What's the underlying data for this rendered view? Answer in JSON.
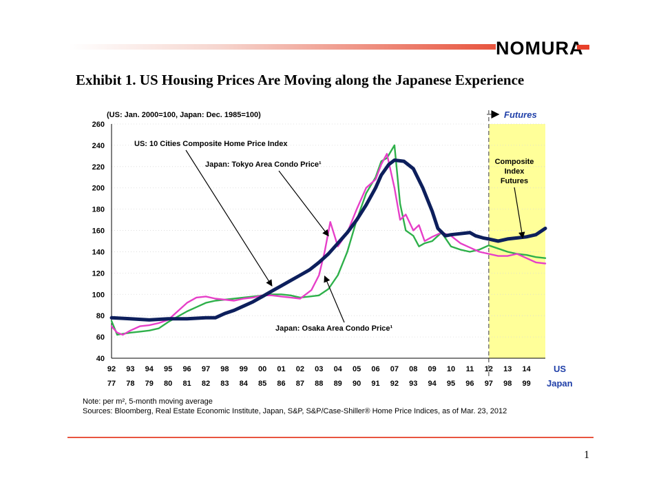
{
  "header": {
    "brand": "NOMURA",
    "title": "Exhibit 1.  US Housing Prices Are Moving along the Japanese Experience"
  },
  "footer": {
    "note": "Note: per m², 5-month moving average",
    "sources": "Sources: Bloomberg, Real Estate Economic Institute, Japan, S&P, S&P/Case-Shiller® Home Price Indices, as of Mar. 23, 2012",
    "page_number": "1"
  },
  "chart_data": {
    "type": "line",
    "title": "Exhibit 1.  US Housing Prices Are Moving along the Japanese Experience",
    "ylabel": "(US: Jan. 2000=100, Japan: Dec. 1985=100)",
    "ylim": [
      40,
      260
    ],
    "yticks": [
      40,
      60,
      80,
      100,
      120,
      140,
      160,
      180,
      200,
      220,
      240,
      260
    ],
    "xlim": [
      92,
      115
    ],
    "x_us_labels": [
      "92",
      "93",
      "94",
      "95",
      "96",
      "97",
      "98",
      "99",
      "00",
      "01",
      "02",
      "03",
      "04",
      "05",
      "06",
      "07",
      "08",
      "09",
      "10",
      "11",
      "12",
      "13",
      "14"
    ],
    "x_japan_labels": [
      "77",
      "78",
      "79",
      "80",
      "81",
      "82",
      "83",
      "84",
      "85",
      "86",
      "87",
      "88",
      "89",
      "90",
      "91",
      "92",
      "93",
      "94",
      "95",
      "96",
      "97",
      "98",
      "99"
    ],
    "x_axis_names": {
      "us": "US",
      "japan": "Japan"
    },
    "futures_start": 112,
    "futures_label": "Futures",
    "series": [
      {
        "name": "US: 10 Cities Composite Home Price Index",
        "color": "#0d1f5c",
        "x": [
          92,
          93,
          94,
          95,
          96,
          97,
          97.5,
          98,
          98.5,
          99,
          99.5,
          100,
          100.5,
          101,
          101.5,
          102,
          102.5,
          103,
          103.5,
          104,
          104.5,
          105,
          105.5,
          106,
          106.3,
          106.7,
          107,
          107.5,
          108,
          108.5,
          109,
          109.3,
          109.7,
          110,
          110.5,
          111,
          111.3,
          111.7,
          112,
          112.5,
          113,
          113.5,
          114,
          114.5,
          115
        ],
        "values": [
          78,
          77,
          76,
          77,
          77,
          78,
          78,
          82,
          85,
          89,
          93,
          98,
          103,
          108,
          113,
          118,
          123,
          130,
          138,
          148,
          158,
          170,
          184,
          200,
          212,
          222,
          226,
          225,
          218,
          200,
          178,
          162,
          155,
          156,
          157,
          158,
          155,
          153,
          152,
          150,
          152,
          153,
          154,
          156,
          162
        ]
      },
      {
        "name": "Japan: Tokyo Area Condo Price¹",
        "color": "#e63fc8",
        "x": [
          92,
          92.3,
          92.6,
          93,
          93.5,
          94,
          94.5,
          95,
          95.5,
          96,
          96.5,
          97,
          97.5,
          98,
          98.5,
          99,
          99.5,
          100,
          100.5,
          101,
          101.5,
          102,
          102.3,
          102.6,
          103,
          103.3,
          103.6,
          104,
          104.5,
          105,
          105.5,
          106,
          106.3,
          106.6,
          107,
          107.3,
          107.6,
          108,
          108.3,
          108.6,
          109,
          109.5,
          110,
          110.5,
          111,
          111.5,
          112,
          112.5,
          113,
          113.5,
          114,
          114.5,
          115
        ],
        "values": [
          70,
          64,
          62,
          66,
          70,
          71,
          73,
          76,
          84,
          92,
          97,
          98,
          96,
          95,
          94,
          96,
          97,
          99,
          99,
          98,
          97,
          96,
          100,
          104,
          118,
          140,
          168,
          145,
          158,
          180,
          200,
          208,
          222,
          232,
          200,
          170,
          175,
          160,
          165,
          150,
          154,
          158,
          155,
          148,
          144,
          140,
          138,
          136,
          136,
          138,
          134,
          130,
          129
        ]
      },
      {
        "name": "Japan: Osaka Area Condo Price¹",
        "color": "#2eb04a",
        "x": [
          92,
          92.3,
          92.6,
          93,
          93.5,
          94,
          94.5,
          95,
          95.5,
          96,
          96.5,
          97,
          97.5,
          98,
          98.5,
          99,
          99.5,
          100,
          100.5,
          101,
          101.5,
          102,
          102.5,
          103,
          103.5,
          104,
          104.5,
          105,
          105.5,
          106,
          106.3,
          106.6,
          107,
          107.3,
          107.6,
          108,
          108.3,
          108.6,
          109,
          109.5,
          110,
          110.5,
          111,
          111.5,
          112,
          112.5,
          113,
          113.5,
          114,
          114.5,
          115
        ],
        "values": [
          75,
          62,
          63,
          64,
          65,
          66,
          68,
          74,
          79,
          84,
          88,
          92,
          94,
          95,
          96,
          97,
          98,
          99,
          100,
          100,
          99,
          97,
          98,
          99,
          105,
          118,
          140,
          170,
          195,
          210,
          225,
          228,
          240,
          185,
          160,
          155,
          145,
          148,
          150,
          158,
          145,
          142,
          140,
          142,
          146,
          143,
          140,
          138,
          137,
          135,
          134
        ]
      }
    ],
    "annotations": [
      {
        "label": "US: 10 Cities Composite Home Price Index",
        "target_x": 100.5,
        "target_y": 108
      },
      {
        "label": "Japan: Tokyo Area Condo Price¹",
        "target_x": 103.5,
        "target_y": 155
      },
      {
        "label": "Japan: Osaka Area Condo Price¹",
        "target_x": 103.3,
        "target_y": 117
      },
      {
        "label": "Composite Index Futures",
        "target_x": 113.8,
        "target_y": 153
      }
    ]
  }
}
